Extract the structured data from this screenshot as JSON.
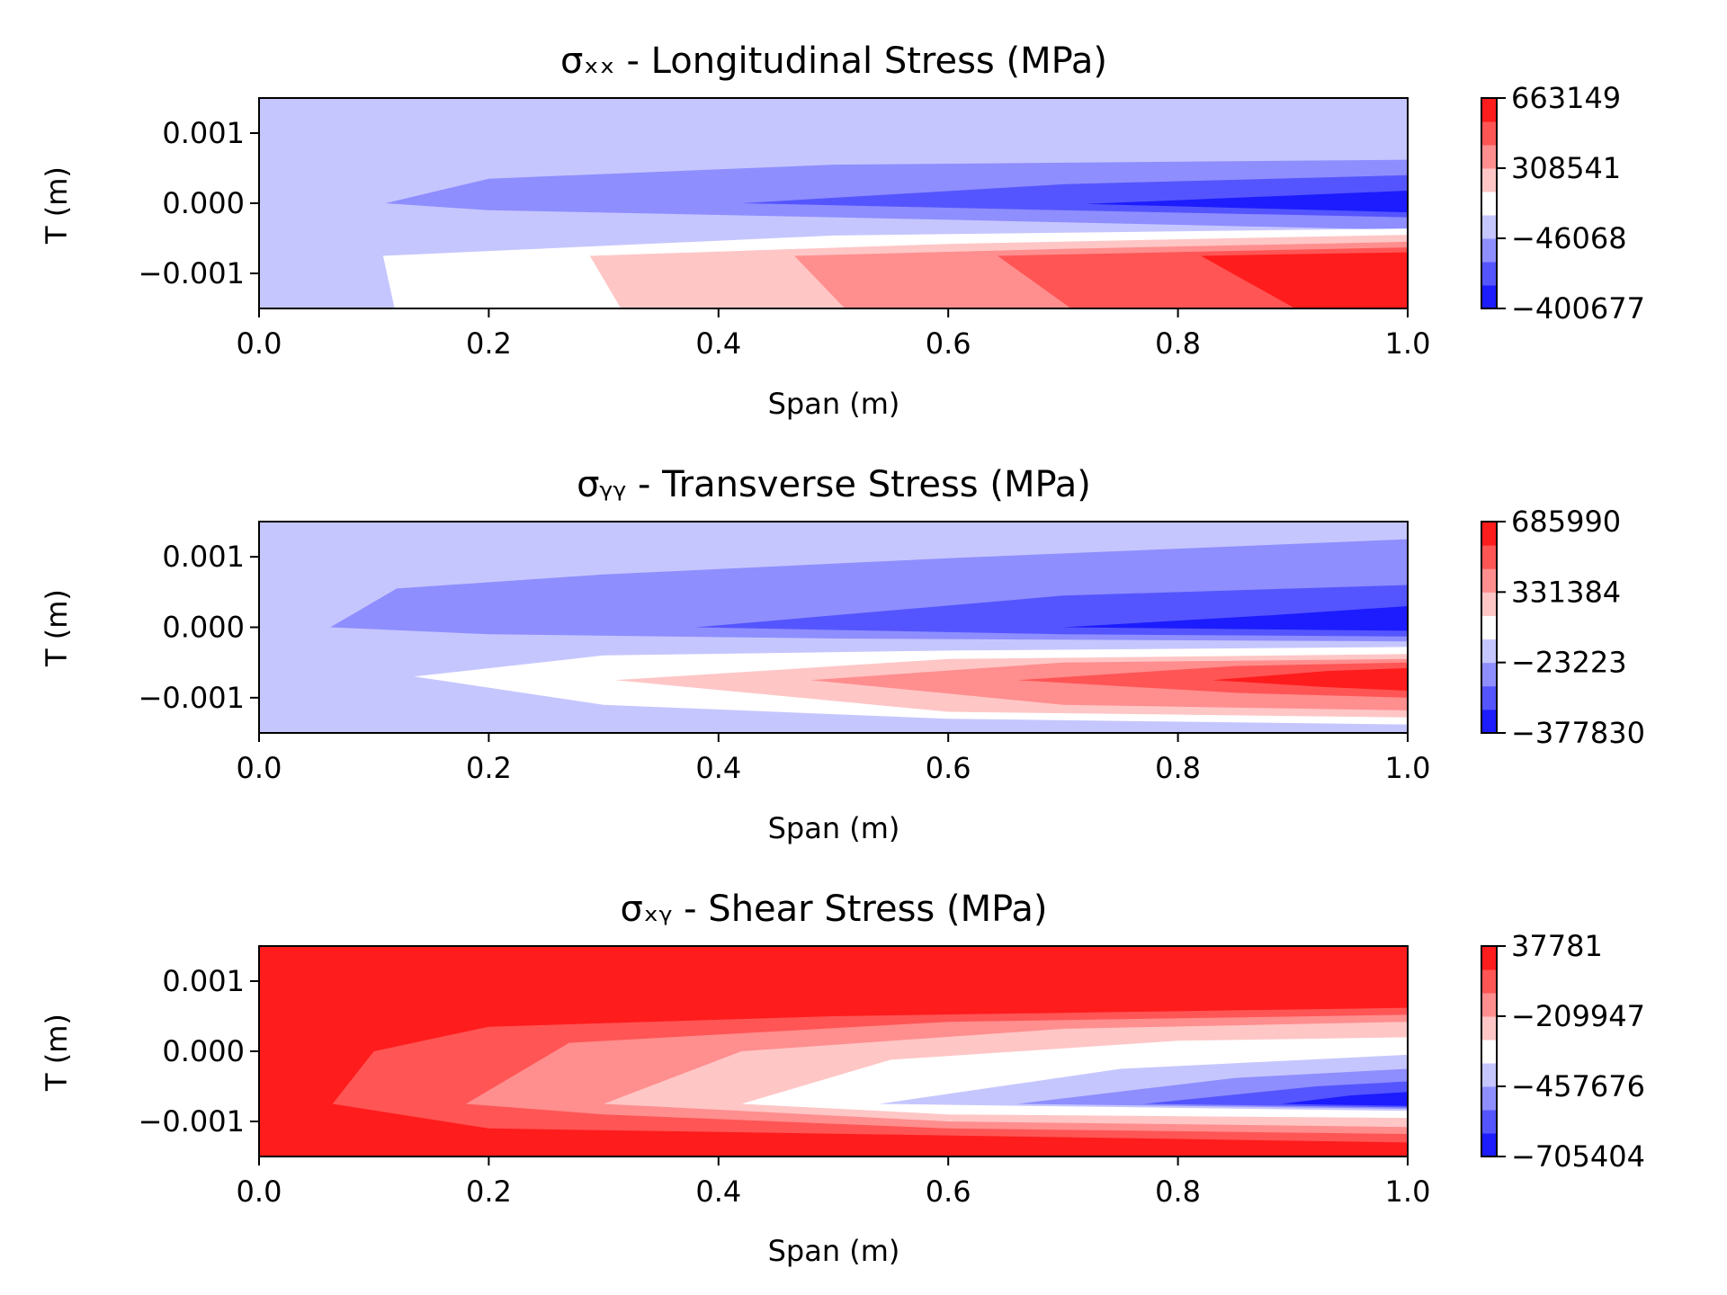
{
  "chart_data": [
    {
      "type": "heatmap",
      "title": "σₓₓ - Longitudinal Stress (MPa)",
      "xlabel": "Span (m)",
      "ylabel": "T (m)",
      "xlim": [
        0.0,
        1.0
      ],
      "ylim": [
        -0.0015,
        0.0015
      ],
      "x_ticks": [
        "0.0",
        "0.2",
        "0.4",
        "0.6",
        "0.8",
        "1.0"
      ],
      "y_ticks": [
        "−0.001",
        "0.000",
        "0.001"
      ],
      "colorbar": {
        "min": -400677,
        "max": 663149,
        "ticks": [
          "663149",
          "308541",
          "−46068",
          "−400677"
        ]
      },
      "bands": [
        {
          "color": "#c6c6ff",
          "polygon": [
            [
              0,
              0.0015
            ],
            [
              1,
              0.0015
            ],
            [
              1,
              -0.0015
            ],
            [
              0,
              -0.0015
            ]
          ]
        },
        {
          "color": "#8e8eff",
          "polygon": [
            [
              0.11,
              0.0
            ],
            [
              0.2,
              0.00035
            ],
            [
              0.5,
              0.00055
            ],
            [
              1,
              0.00062
            ],
            [
              1,
              -0.00038
            ],
            [
              0.5,
              -0.0002
            ],
            [
              0.2,
              -0.0001
            ],
            [
              0.11,
              0.0
            ]
          ]
        },
        {
          "color": "#5555ff",
          "polygon": [
            [
              0.42,
              0.0
            ],
            [
              0.7,
              0.00027
            ],
            [
              1,
              0.0004
            ],
            [
              1,
              -0.0002
            ],
            [
              0.7,
              -0.0001
            ],
            [
              0.42,
              0.0
            ]
          ]
        },
        {
          "color": "#1c1cff",
          "polygon": [
            [
              0.72,
              -1e-05
            ],
            [
              1,
              0.00018
            ],
            [
              1,
              -0.00013
            ],
            [
              0.72,
              -1e-05
            ]
          ]
        },
        {
          "color": "#ffffff",
          "polygon": [
            [
              0.108,
              -0.00075
            ],
            [
              0.5,
              -0.00046
            ],
            [
              1,
              -0.00036
            ],
            [
              1,
              -0.0015
            ],
            [
              0.118,
              -0.0015
            ]
          ]
        },
        {
          "color": "#ffc6c6",
          "polygon": [
            [
              0.288,
              -0.00075
            ],
            [
              0.6,
              -0.00058
            ],
            [
              1,
              -0.00045
            ],
            [
              1,
              -0.0015
            ],
            [
              0.315,
              -0.0015
            ]
          ]
        },
        {
          "color": "#ff8e8e",
          "polygon": [
            [
              0.466,
              -0.00075
            ],
            [
              0.7,
              -0.00065
            ],
            [
              1,
              -0.00055
            ],
            [
              1,
              -0.0015
            ],
            [
              0.51,
              -0.0015
            ]
          ]
        },
        {
          "color": "#ff5555",
          "polygon": [
            [
              0.643,
              -0.00075
            ],
            [
              0.85,
              -0.00068
            ],
            [
              1,
              -0.00063
            ],
            [
              1,
              -0.0015
            ],
            [
              0.707,
              -0.0015
            ]
          ]
        },
        {
          "color": "#ff1c1c",
          "polygon": [
            [
              0.82,
              -0.00075
            ],
            [
              0.92,
              -0.00072
            ],
            [
              1,
              -0.0007
            ],
            [
              1,
              -0.0015
            ],
            [
              0.902,
              -0.0015
            ]
          ]
        }
      ]
    },
    {
      "type": "heatmap",
      "title": "σᵧᵧ - Transverse Stress (MPa)",
      "xlabel": "Span (m)",
      "ylabel": "T (m)",
      "xlim": [
        0.0,
        1.0
      ],
      "ylim": [
        -0.0015,
        0.0015
      ],
      "x_ticks": [
        "0.0",
        "0.2",
        "0.4",
        "0.6",
        "0.8",
        "1.0"
      ],
      "y_ticks": [
        "−0.001",
        "0.000",
        "0.001"
      ],
      "colorbar": {
        "min": -377830,
        "max": 685990,
        "ticks": [
          "685990",
          "331384",
          "−23223",
          "−377830"
        ]
      },
      "bands": [
        {
          "color": "#c6c6ff",
          "polygon": [
            [
              0,
              0.0015
            ],
            [
              1,
              0.0015
            ],
            [
              1,
              -0.0015
            ],
            [
              0,
              -0.0015
            ]
          ]
        },
        {
          "color": "#8e8eff",
          "polygon": [
            [
              0.062,
              0.0
            ],
            [
              0.12,
              0.00055
            ],
            [
              0.3,
              0.00075
            ],
            [
              0.6,
              0.00098
            ],
            [
              1,
              0.00125
            ],
            [
              1,
              -0.0002
            ],
            [
              0.5,
              -0.00016
            ],
            [
              0.2,
              -0.0001
            ],
            [
              0.062,
              0.0
            ]
          ]
        },
        {
          "color": "#5555ff",
          "polygon": [
            [
              0.38,
              0.0
            ],
            [
              0.7,
              0.00045
            ],
            [
              1,
              0.0006
            ],
            [
              1,
              -0.00013
            ],
            [
              0.7,
              -0.0001
            ],
            [
              0.38,
              0.0
            ]
          ]
        },
        {
          "color": "#1c1cff",
          "polygon": [
            [
              0.7,
              0.0
            ],
            [
              0.88,
              0.00017
            ],
            [
              1,
              0.0003
            ],
            [
              1,
              -5e-05
            ],
            [
              0.7,
              0.0
            ]
          ]
        },
        {
          "color": "#ffffff",
          "polygon": [
            [
              0.135,
              -0.0007
            ],
            [
              0.3,
              -0.0004
            ],
            [
              0.6,
              -0.00033
            ],
            [
              1,
              -0.00028
            ],
            [
              1,
              -0.00138
            ],
            [
              0.6,
              -0.0013
            ],
            [
              0.3,
              -0.0011
            ],
            [
              0.135,
              -0.0007
            ]
          ]
        },
        {
          "color": "#ffc6c6",
          "polygon": [
            [
              0.31,
              -0.00075
            ],
            [
              0.6,
              -0.00045
            ],
            [
              1,
              -0.00038
            ],
            [
              1,
              -0.00128
            ],
            [
              0.6,
              -0.0012
            ],
            [
              0.31,
              -0.00075
            ]
          ]
        },
        {
          "color": "#ff8e8e",
          "polygon": [
            [
              0.48,
              -0.00075
            ],
            [
              0.7,
              -0.0005
            ],
            [
              1,
              -0.00045
            ],
            [
              1,
              -0.00118
            ],
            [
              0.7,
              -0.0011
            ],
            [
              0.48,
              -0.00075
            ]
          ]
        },
        {
          "color": "#ff5555",
          "polygon": [
            [
              0.66,
              -0.00075
            ],
            [
              0.85,
              -0.00055
            ],
            [
              1,
              -0.0005
            ],
            [
              1,
              -0.001
            ],
            [
              0.85,
              -0.00093
            ],
            [
              0.66,
              -0.00075
            ]
          ]
        },
        {
          "color": "#ff1c1c",
          "polygon": [
            [
              0.83,
              -0.00075
            ],
            [
              0.93,
              -0.00062
            ],
            [
              1,
              -0.00058
            ],
            [
              1,
              -0.0009
            ],
            [
              0.93,
              -0.00085
            ],
            [
              0.83,
              -0.00075
            ]
          ]
        }
      ]
    },
    {
      "type": "heatmap",
      "title": "σₓᵧ - Shear Stress (MPa)",
      "xlabel": "Span (m)",
      "ylabel": "T (m)",
      "xlim": [
        0.0,
        1.0
      ],
      "ylim": [
        -0.0015,
        0.0015
      ],
      "x_ticks": [
        "0.0",
        "0.2",
        "0.4",
        "0.6",
        "0.8",
        "1.0"
      ],
      "y_ticks": [
        "−0.001",
        "0.000",
        "0.001"
      ],
      "colorbar": {
        "min": -705404,
        "max": 37781,
        "ticks": [
          "37781",
          "−209947",
          "−457676",
          "−705404"
        ]
      },
      "bands": [
        {
          "color": "#ff1c1c",
          "polygon": [
            [
              0,
              0.0015
            ],
            [
              1,
              0.0015
            ],
            [
              1,
              -0.0015
            ],
            [
              0,
              -0.0015
            ]
          ]
        },
        {
          "color": "#ff5555",
          "polygon": [
            [
              0.064,
              -0.00075
            ],
            [
              0.1,
              0.0
            ],
            [
              0.2,
              0.00035
            ],
            [
              0.5,
              0.0005
            ],
            [
              1,
              0.00062
            ],
            [
              1,
              -0.0013
            ],
            [
              0.6,
              -0.0012
            ],
            [
              0.2,
              -0.0011
            ],
            [
              0.064,
              -0.00075
            ]
          ]
        },
        {
          "color": "#ff8e8e",
          "polygon": [
            [
              0.18,
              -0.00075
            ],
            [
              0.27,
              0.00012
            ],
            [
              0.6,
              0.00042
            ],
            [
              1,
              0.00052
            ],
            [
              1,
              -0.00118
            ],
            [
              0.6,
              -0.0011
            ],
            [
              0.3,
              -0.0009
            ],
            [
              0.18,
              -0.00075
            ]
          ]
        },
        {
          "color": "#ffc6c6",
          "polygon": [
            [
              0.3,
              -0.00075
            ],
            [
              0.42,
              0.0
            ],
            [
              0.7,
              0.00032
            ],
            [
              1,
              0.00042
            ],
            [
              1,
              -0.00108
            ],
            [
              0.6,
              -0.001
            ],
            [
              0.3,
              -0.00075
            ]
          ]
        },
        {
          "color": "#ffffff",
          "polygon": [
            [
              0.42,
              -0.00075
            ],
            [
              0.55,
              -0.00012
            ],
            [
              0.8,
              0.00015
            ],
            [
              1,
              0.0002
            ],
            [
              1,
              -0.00095
            ],
            [
              0.6,
              -0.0009
            ],
            [
              0.42,
              -0.00075
            ]
          ]
        },
        {
          "color": "#c6c6ff",
          "polygon": [
            [
              0.54,
              -0.00075
            ],
            [
              0.75,
              -0.00025
            ],
            [
              1,
              -5e-05
            ],
            [
              1,
              -0.00085
            ],
            [
              0.54,
              -0.00075
            ]
          ]
        },
        {
          "color": "#8e8eff",
          "polygon": [
            [
              0.66,
              -0.00075
            ],
            [
              0.85,
              -0.00038
            ],
            [
              1,
              -0.00025
            ],
            [
              1,
              -0.00082
            ],
            [
              0.66,
              -0.00075
            ]
          ]
        },
        {
          "color": "#5555ff",
          "polygon": [
            [
              0.77,
              -0.00075
            ],
            [
              0.92,
              -0.0005
            ],
            [
              1,
              -0.00043
            ],
            [
              1,
              -0.0008
            ],
            [
              0.77,
              -0.00075
            ]
          ]
        },
        {
          "color": "#1c1cff",
          "polygon": [
            [
              0.89,
              -0.00075
            ],
            [
              0.95,
              -0.00063
            ],
            [
              1,
              -0.00058
            ],
            [
              1,
              -0.00078
            ],
            [
              0.89,
              -0.00075
            ]
          ]
        }
      ]
    }
  ],
  "colorbar_colors": [
    "#1c1cff",
    "#5555ff",
    "#8e8eff",
    "#c6c6ff",
    "#ffffff",
    "#ffc6c6",
    "#ff8e8e",
    "#ff5555",
    "#ff1c1c"
  ]
}
